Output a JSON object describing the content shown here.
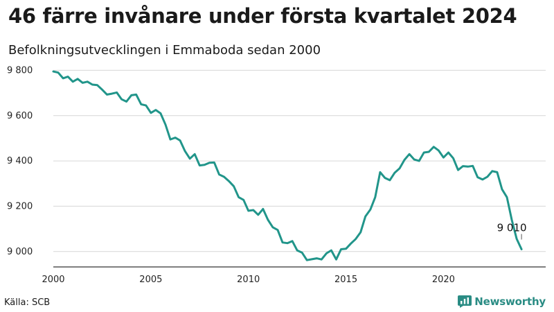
{
  "chart_data": {
    "type": "line",
    "title": "46 färre invånare under första kvartalet 2024",
    "subtitle": "Befolkningsutvecklingen i Emmaboda sedan 2000",
    "xlabel": "",
    "ylabel": "",
    "xlim": [
      2000,
      2024.6
    ],
    "ylim": [
      8935,
      9835
    ],
    "x_ticks": [
      {
        "value": 2000,
        "label": "2000"
      },
      {
        "value": 2005,
        "label": "2005"
      },
      {
        "value": 2010,
        "label": "2010"
      },
      {
        "value": 2015,
        "label": "2015"
      },
      {
        "value": 2020,
        "label": "2020"
      }
    ],
    "y_ticks": [
      {
        "value": 9000,
        "label": "9 000"
      },
      {
        "value": 9200,
        "label": "9 200"
      },
      {
        "value": 9400,
        "label": "9 400"
      },
      {
        "value": 9600,
        "label": "9 600"
      },
      {
        "value": 9800,
        "label": "9 800"
      }
    ],
    "grid": true,
    "series": [
      {
        "name": "Befolkning",
        "color": "#21958a",
        "x": [
          2000.0,
          2000.25,
          2000.5,
          2000.75,
          2001.0,
          2001.25,
          2001.5,
          2001.75,
          2002.0,
          2002.25,
          2002.5,
          2002.75,
          2003.0,
          2003.25,
          2003.5,
          2003.75,
          2004.0,
          2004.25,
          2004.5,
          2004.75,
          2005.0,
          2005.25,
          2005.5,
          2005.75,
          2006.0,
          2006.25,
          2006.5,
          2006.75,
          2007.0,
          2007.25,
          2007.5,
          2007.75,
          2008.0,
          2008.25,
          2008.5,
          2008.75,
          2009.0,
          2009.25,
          2009.5,
          2009.75,
          2010.0,
          2010.25,
          2010.5,
          2010.75,
          2011.0,
          2011.25,
          2011.5,
          2011.75,
          2012.0,
          2012.25,
          2012.5,
          2012.75,
          2013.0,
          2013.25,
          2013.5,
          2013.75,
          2014.0,
          2014.25,
          2014.5,
          2014.75,
          2015.0,
          2015.25,
          2015.5,
          2015.75,
          2016.0,
          2016.25,
          2016.5,
          2016.75,
          2017.0,
          2017.25,
          2017.5,
          2017.75,
          2018.0,
          2018.25,
          2018.5,
          2018.75,
          2019.0,
          2019.25,
          2019.5,
          2019.75,
          2020.0,
          2020.25,
          2020.5,
          2020.75,
          2021.0,
          2021.25,
          2021.5,
          2021.75,
          2022.0,
          2022.25,
          2022.5,
          2022.75,
          2023.0,
          2023.25,
          2023.5,
          2023.75,
          2024.0
        ],
        "values": [
          9795,
          9790,
          9765,
          9772,
          9750,
          9762,
          9745,
          9750,
          9737,
          9735,
          9715,
          9693,
          9697,
          9702,
          9672,
          9662,
          9690,
          9693,
          9650,
          9645,
          9612,
          9625,
          9610,
          9560,
          9495,
          9503,
          9490,
          9443,
          9410,
          9430,
          9380,
          9383,
          9392,
          9393,
          9340,
          9330,
          9311,
          9288,
          9240,
          9228,
          9180,
          9183,
          9162,
          9188,
          9140,
          9107,
          9095,
          9040,
          9037,
          9046,
          9005,
          8995,
          8962,
          8966,
          8970,
          8965,
          8992,
          9005,
          8965,
          9010,
          9012,
          9035,
          9055,
          9085,
          9155,
          9185,
          9240,
          9350,
          9325,
          9315,
          9348,
          9367,
          9405,
          9430,
          9406,
          9400,
          9437,
          9440,
          9462,
          9446,
          9415,
          9437,
          9412,
          9360,
          9377,
          9375,
          9378,
          9328,
          9318,
          9330,
          9355,
          9350,
          9275,
          9240,
          9140,
          9056,
          9010
        ]
      }
    ],
    "annotations": [
      {
        "label": "9 010",
        "x": 2024.0,
        "value": 9010
      }
    ],
    "legend": "none"
  },
  "footer": {
    "source": "Källa: SCB",
    "brand": "Newsworthy"
  },
  "colors": {
    "line": "#21958a",
    "grid": "#d6d6d6",
    "baseline": "#333333",
    "brand": "#2a8c84"
  }
}
